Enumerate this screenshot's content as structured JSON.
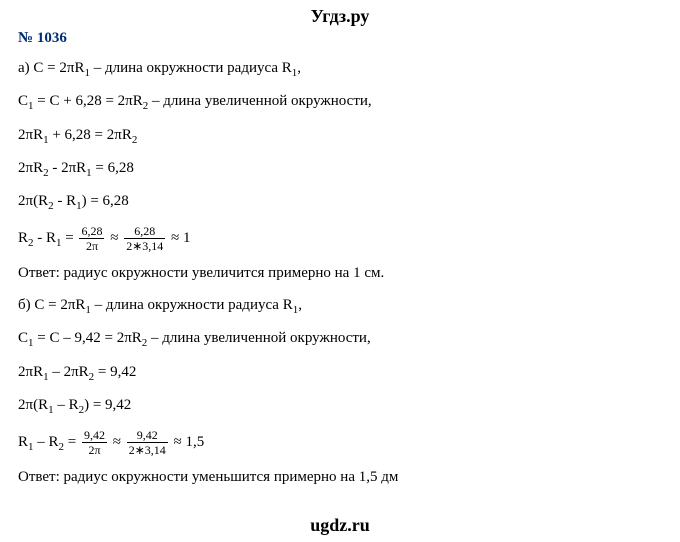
{
  "watermark": {
    "top": "Угдз.ру",
    "bottom": "ugdz.ru"
  },
  "heading": "№ 1036",
  "lines": {
    "a1_pre": "а) C = 2πR",
    "a1_sub": "1",
    "a1_post": " – длина окружности радиуса R",
    "a1_sub2": "1",
    "a1_end": ",",
    "a2_pre": "C",
    "a2_sub": "1",
    "a2_mid": " = C + 6,28 = 2πR",
    "a2_sub2": "2",
    "a2_end": "  – длина увеличенной окружности,",
    "a3_pre": "2πR",
    "a3_sub": "1",
    "a3_mid": " + 6,28 = 2πR",
    "a3_sub2": "2",
    "a4_pre": "2πR",
    "a4_sub": "2",
    "a4_mid": " - 2πR",
    "a4_sub2": "1",
    "a4_end": " = 6,28",
    "a5_pre": "2π(R",
    "a5_sub": "2",
    "a5_mid": " - R",
    "a5_sub2": "1",
    "a5_end": ") = 6,28",
    "a6_pre": "R",
    "a6_sub": "2",
    "a6_mid": " - R",
    "a6_sub2": "1",
    "a6_eq": " = ",
    "a6_f1_num": "6,28",
    "a6_f1_den": "2π",
    "a6_approx1": " ≈ ",
    "a6_f2_num": "6,28",
    "a6_f2_den": "2∗3,14",
    "a6_approx2": " ≈ 1",
    "a7": "Ответ: радиус окружности увеличится примерно на 1 см.",
    "b1_pre": "б) C = 2πR",
    "b1_sub": "1",
    "b1_post": " – длина окружности радиуса R",
    "b1_sub2": "1",
    "b1_end": ",",
    "b2_pre": "C",
    "b2_sub": "1",
    "b2_mid": " = C – 9,42 = 2πR",
    "b2_sub2": "2",
    "b2_end": "  – длина увеличенной окружности,",
    "b3_pre": "2πR",
    "b3_sub": "1",
    "b3_mid": " – 2πR",
    "b3_sub2": "2",
    "b3_end": " = 9,42",
    "b4_pre": "2π(R",
    "b4_sub": "1",
    "b4_mid": " – R",
    "b4_sub2": "2",
    "b4_end": ") = 9,42",
    "b5_pre": "R",
    "b5_sub": "1",
    "b5_mid": " – R",
    "b5_sub2": "2",
    "b5_eq": " = ",
    "b5_f1_num": "9,42",
    "b5_f1_den": "2π",
    "b5_approx1": " ≈ ",
    "b5_f2_num": "9,42",
    "b5_f2_den": "2∗3,14",
    "b5_approx2": " ≈ 1,5",
    "b6": "Ответ: радиус окружности уменьшится примерно на 1,5 дм"
  }
}
